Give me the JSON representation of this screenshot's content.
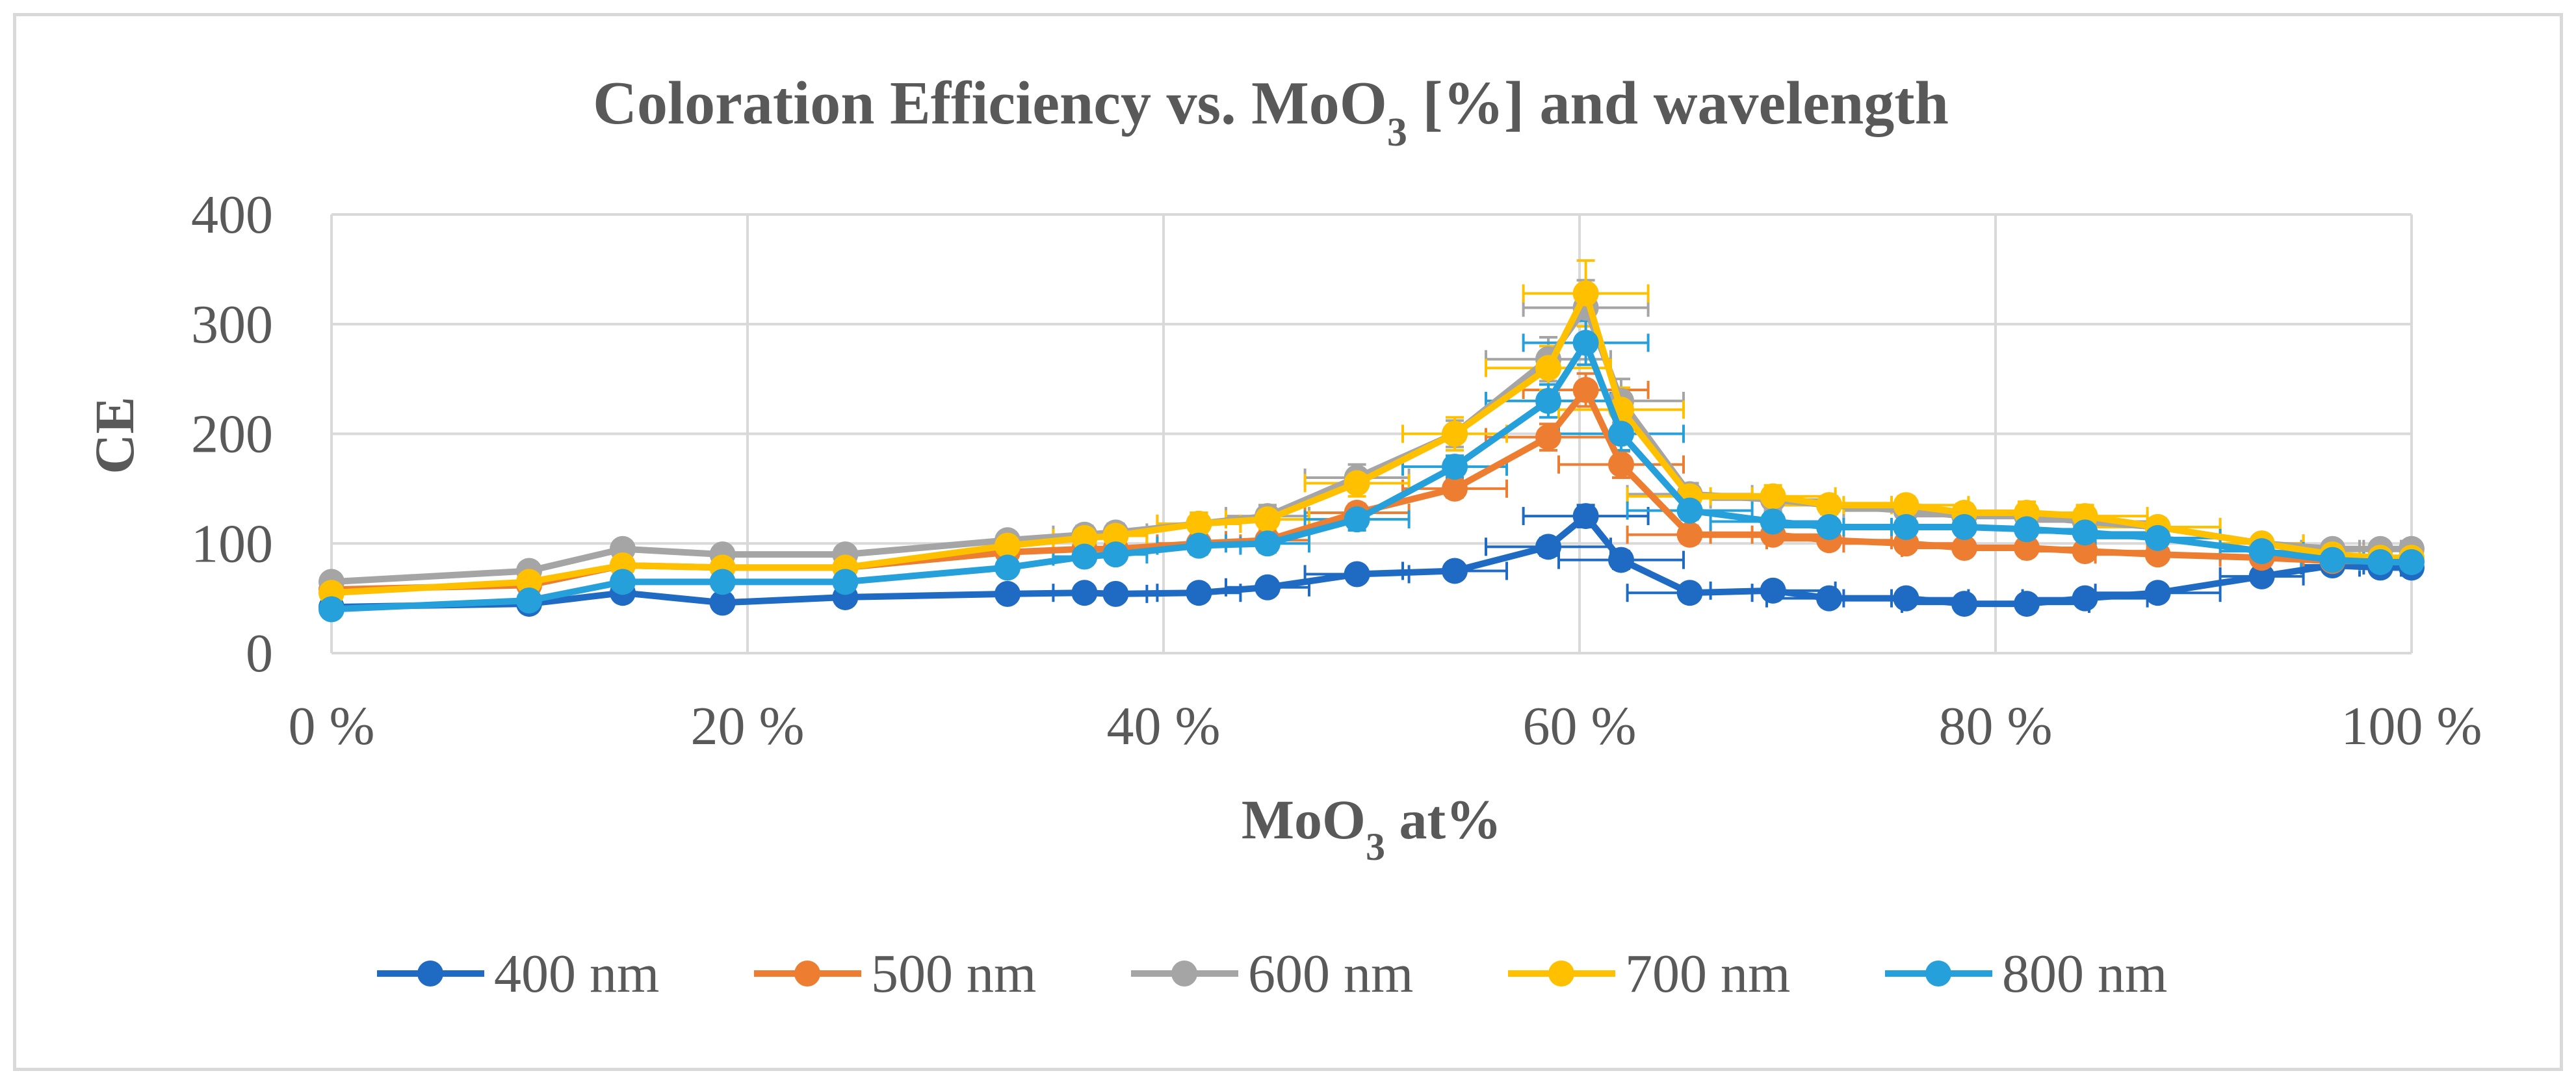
{
  "chart_data": {
    "type": "line",
    "title_main": "Coloration  Efficiency vs. MoO",
    "title_sub": "3",
    "title_tail": " [%] and wavelength",
    "xlabel_main": "MoO",
    "xlabel_sub": "3",
    "xlabel_tail": " at%",
    "ylabel": "CE",
    "xlim": [
      0,
      100
    ],
    "ylim": [
      0,
      400
    ],
    "x_ticks": [
      0,
      20,
      40,
      60,
      80,
      100
    ],
    "x_tick_labels": [
      "0 %",
      "20 %",
      "40 %",
      "60 %",
      "80 %",
      "100 %"
    ],
    "y_ticks": [
      0,
      100,
      200,
      300,
      400
    ],
    "y_tick_labels": [
      "0",
      "100",
      "200",
      "300",
      "400"
    ],
    "grid": true,
    "legend_position": "bottom",
    "x": [
      0,
      9.5,
      14,
      18.8,
      24.7,
      32.5,
      36.2,
      37.7,
      41.7,
      45,
      49.3,
      54,
      58.5,
      60.3,
      62,
      65.3,
      69.3,
      72,
      75.7,
      78.5,
      81.5,
      84.3,
      87.8,
      92.8,
      96.2,
      98.5,
      100
    ],
    "x_error": [
      0,
      0,
      0,
      0,
      0,
      0,
      1.5,
      1.5,
      2,
      2,
      2.5,
      2.5,
      3,
      3,
      3,
      3,
      3,
      3,
      3,
      3,
      3,
      3,
      3,
      2,
      1.5,
      1,
      0
    ],
    "series": [
      {
        "name": "400 nm",
        "color": "#1f6bc4",
        "values": [
          42,
          45,
          55,
          46,
          51,
          54,
          55,
          54,
          55,
          60,
          72,
          75,
          97,
          125,
          85,
          55,
          57,
          50,
          50,
          45,
          45,
          50,
          55,
          70,
          80,
          78,
          78
        ],
        "y_error": [
          0,
          0,
          0,
          0,
          0,
          0,
          3,
          3,
          4,
          4,
          5,
          5,
          8,
          10,
          8,
          5,
          5,
          4,
          4,
          4,
          4,
          4,
          4,
          4,
          4,
          3,
          3
        ]
      },
      {
        "name": "500 nm",
        "color": "#ed7d31",
        "values": [
          58,
          62,
          80,
          78,
          78,
          92,
          95,
          95,
          100,
          103,
          128,
          150,
          197,
          240,
          172,
          108,
          108,
          103,
          100,
          96,
          96,
          93,
          90,
          87,
          84,
          84,
          84
        ],
        "y_error": [
          0,
          0,
          0,
          0,
          0,
          0,
          5,
          5,
          6,
          6,
          8,
          8,
          12,
          15,
          12,
          8,
          8,
          6,
          6,
          6,
          6,
          6,
          6,
          5,
          5,
          4,
          4
        ]
      },
      {
        "name": "600 nm",
        "color": "#a5a5a5",
        "values": [
          65,
          75,
          95,
          90,
          90,
          103,
          108,
          110,
          118,
          125,
          160,
          200,
          268,
          315,
          230,
          145,
          140,
          135,
          130,
          125,
          125,
          120,
          115,
          100,
          95,
          95,
          95
        ],
        "y_error": [
          0,
          0,
          0,
          0,
          0,
          0,
          8,
          8,
          10,
          10,
          12,
          12,
          20,
          25,
          20,
          10,
          10,
          8,
          8,
          8,
          8,
          8,
          8,
          6,
          6,
          5,
          5
        ]
      },
      {
        "name": "700 nm",
        "color": "#ffc000",
        "values": [
          55,
          65,
          80,
          78,
          78,
          98,
          105,
          107,
          118,
          122,
          155,
          200,
          260,
          328,
          222,
          143,
          143,
          135,
          135,
          128,
          128,
          125,
          115,
          100,
          90,
          87,
          87
        ],
        "y_error": [
          0,
          0,
          0,
          0,
          0,
          0,
          8,
          8,
          10,
          10,
          12,
          15,
          20,
          30,
          20,
          10,
          10,
          8,
          8,
          8,
          10,
          10,
          8,
          6,
          6,
          5,
          5
        ]
      },
      {
        "name": "800 nm",
        "color": "#26a0da",
        "values": [
          40,
          48,
          65,
          65,
          65,
          78,
          88,
          90,
          98,
          100,
          122,
          170,
          230,
          283,
          200,
          130,
          120,
          115,
          115,
          115,
          113,
          110,
          105,
          93,
          85,
          83,
          83
        ],
        "y_error": [
          0,
          0,
          0,
          0,
          0,
          0,
          6,
          6,
          8,
          8,
          10,
          10,
          15,
          20,
          15,
          8,
          8,
          6,
          6,
          6,
          6,
          6,
          6,
          5,
          5,
          4,
          4
        ]
      }
    ]
  }
}
